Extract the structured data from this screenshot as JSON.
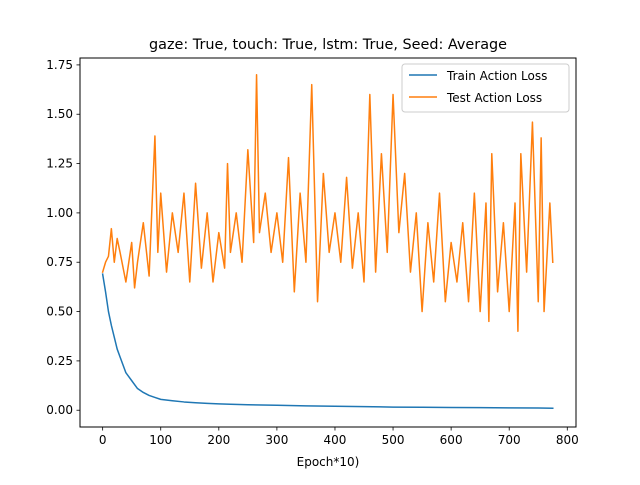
{
  "chart_data": {
    "type": "line",
    "title": "gaze: True, touch: True, lstm: True, Seed: Average",
    "xlabel": "Epoch*10)",
    "ylabel": "",
    "xlim": [
      -39,
      815
    ],
    "ylim": [
      -0.085,
      1.785
    ],
    "xticks": [
      0,
      100,
      200,
      300,
      400,
      500,
      600,
      700,
      800
    ],
    "yticks": [
      0.0,
      0.25,
      0.5,
      0.75,
      1.0,
      1.25,
      1.5,
      1.75
    ],
    "xtick_labels": [
      "0",
      "100",
      "200",
      "300",
      "400",
      "500",
      "600",
      "700",
      "800"
    ],
    "ytick_labels": [
      "0.00",
      "0.25",
      "0.50",
      "0.75",
      "1.00",
      "1.25",
      "1.50",
      "1.75"
    ],
    "grid": false,
    "legend_position": "top-right",
    "series": [
      {
        "name": "Train Action Loss",
        "color": "#1f77b4",
        "x": [
          0,
          5,
          10,
          15,
          20,
          25,
          30,
          35,
          40,
          50,
          60,
          70,
          80,
          90,
          100,
          120,
          140,
          160,
          180,
          200,
          220,
          250,
          300,
          350,
          400,
          450,
          500,
          550,
          600,
          650,
          700,
          750,
          775
        ],
        "y": [
          0.69,
          0.6,
          0.5,
          0.43,
          0.37,
          0.31,
          0.27,
          0.23,
          0.19,
          0.15,
          0.11,
          0.09,
          0.075,
          0.065,
          0.055,
          0.048,
          0.042,
          0.038,
          0.035,
          0.032,
          0.03,
          0.028,
          0.025,
          0.022,
          0.02,
          0.018,
          0.016,
          0.015,
          0.014,
          0.013,
          0.012,
          0.011,
          0.01
        ]
      },
      {
        "name": "Test Action Loss",
        "color": "#ff7f0e",
        "x": [
          0,
          5,
          10,
          15,
          20,
          25,
          30,
          40,
          50,
          55,
          60,
          70,
          80,
          90,
          95,
          100,
          110,
          120,
          130,
          140,
          150,
          160,
          170,
          180,
          190,
          200,
          210,
          215,
          220,
          230,
          240,
          250,
          260,
          265,
          270,
          280,
          290,
          300,
          310,
          320,
          330,
          340,
          350,
          360,
          370,
          380,
          390,
          400,
          410,
          420,
          430,
          440,
          450,
          460,
          470,
          480,
          490,
          500,
          510,
          520,
          530,
          540,
          550,
          560,
          570,
          580,
          590,
          600,
          610,
          620,
          630,
          640,
          650,
          660,
          665,
          670,
          680,
          690,
          700,
          710,
          715,
          720,
          730,
          740,
          750,
          755,
          760,
          770,
          775
        ],
        "y": [
          0.7,
          0.75,
          0.78,
          0.92,
          0.75,
          0.87,
          0.8,
          0.65,
          0.85,
          0.62,
          0.75,
          0.95,
          0.68,
          1.39,
          0.8,
          1.1,
          0.7,
          1.0,
          0.8,
          1.1,
          0.65,
          1.15,
          0.72,
          1.0,
          0.65,
          0.9,
          0.72,
          1.25,
          0.8,
          1.0,
          0.75,
          1.32,
          0.85,
          1.7,
          0.9,
          1.1,
          0.8,
          1.0,
          0.75,
          1.28,
          0.6,
          1.1,
          0.75,
          1.65,
          0.55,
          1.2,
          0.8,
          1.0,
          0.75,
          1.18,
          0.72,
          1.0,
          0.65,
          1.6,
          0.7,
          1.3,
          0.8,
          1.6,
          0.9,
          1.2,
          0.7,
          1.0,
          0.5,
          0.95,
          0.65,
          1.1,
          0.55,
          0.85,
          0.65,
          0.95,
          0.55,
          1.1,
          0.5,
          1.05,
          0.45,
          1.3,
          0.6,
          0.95,
          0.5,
          1.05,
          0.4,
          1.3,
          0.7,
          1.46,
          0.55,
          1.38,
          0.5,
          1.05,
          0.75
        ]
      }
    ]
  }
}
